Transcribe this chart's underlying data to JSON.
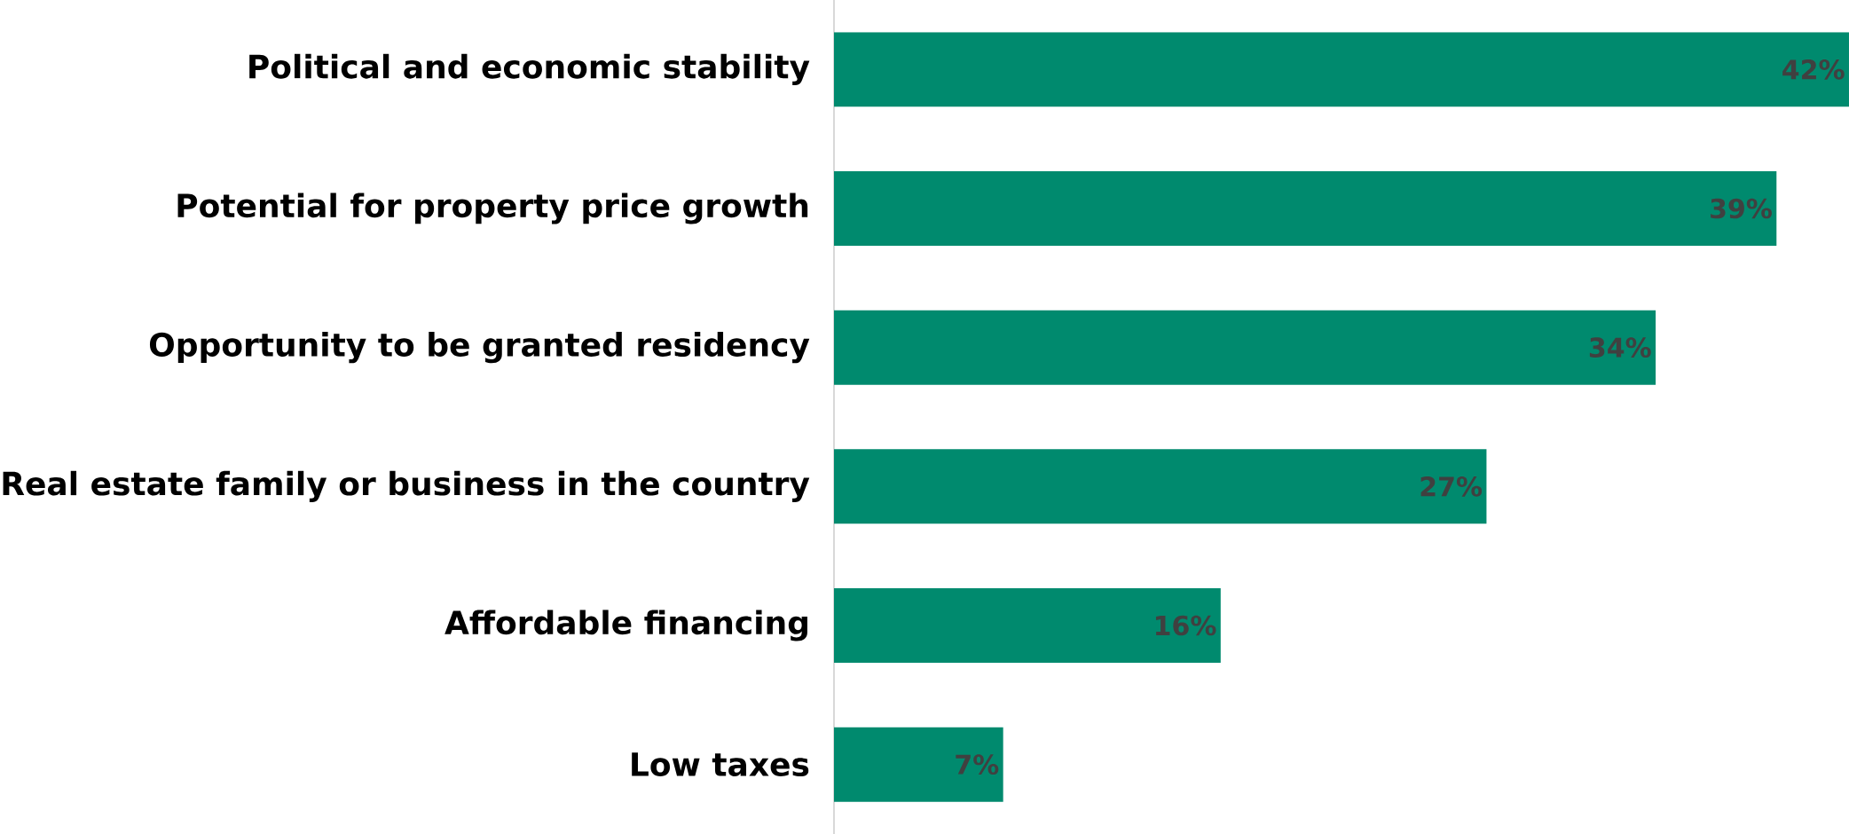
{
  "chart_data": {
    "type": "bar",
    "orientation": "horizontal",
    "categories": [
      "Political and economic stability",
      "Potential for property price growth",
      "Opportunity to be granted residency",
      "Real estate family or business in the country",
      "Affordable financing",
      "Low taxes"
    ],
    "values": [
      42,
      39,
      34,
      27,
      16,
      7
    ],
    "value_labels": [
      "42%",
      "39%",
      "34%",
      "27%",
      "16%",
      "7%"
    ],
    "color": "#008a6e"
  }
}
